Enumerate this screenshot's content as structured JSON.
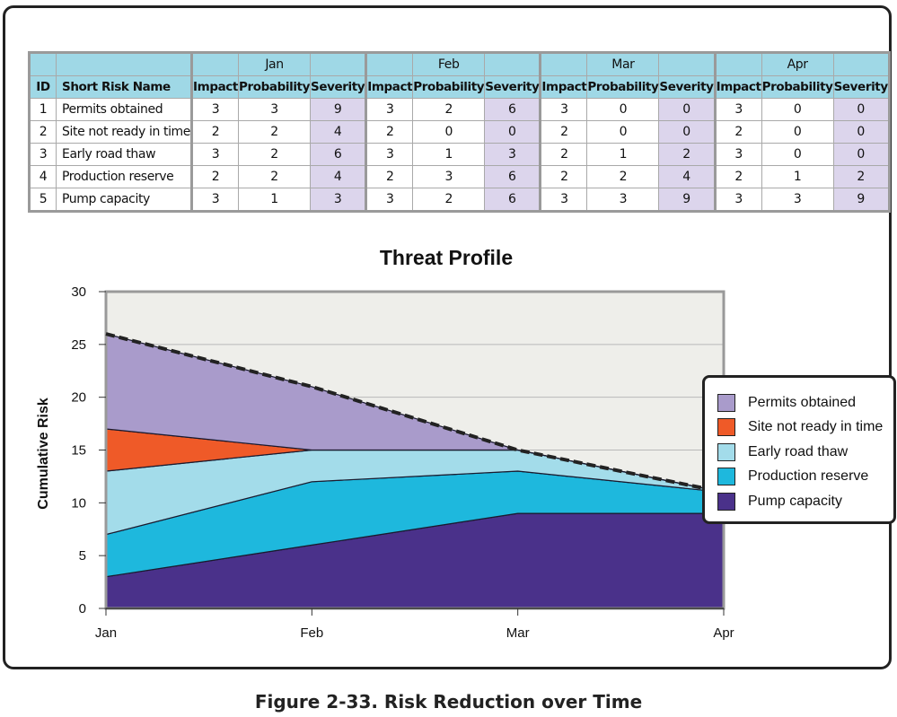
{
  "table": {
    "months": [
      "Jan",
      "Feb",
      "Mar",
      "Apr"
    ],
    "headers": {
      "id": "ID",
      "name": "Short Risk Name",
      "impact": "Impact",
      "probability": "Probability",
      "severity": "Severity"
    },
    "rows": [
      {
        "id": "1",
        "name": "Permits obtained",
        "cells": [
          "3",
          "3",
          "9",
          "3",
          "2",
          "6",
          "3",
          "0",
          "0",
          "3",
          "0",
          "0"
        ]
      },
      {
        "id": "2",
        "name": "Site not ready in time",
        "cells": [
          "2",
          "2",
          "4",
          "2",
          "0",
          "0",
          "2",
          "0",
          "0",
          "2",
          "0",
          "0"
        ]
      },
      {
        "id": "3",
        "name": "Early road thaw",
        "cells": [
          "3",
          "2",
          "6",
          "3",
          "1",
          "3",
          "2",
          "1",
          "2",
          "3",
          "0",
          "0"
        ]
      },
      {
        "id": "4",
        "name": "Production reserve",
        "cells": [
          "2",
          "2",
          "4",
          "2",
          "3",
          "6",
          "2",
          "2",
          "4",
          "2",
          "1",
          "2"
        ]
      },
      {
        "id": "5",
        "name": "Pump capacity",
        "cells": [
          "3",
          "1",
          "3",
          "3",
          "2",
          "6",
          "3",
          "3",
          "9",
          "3",
          "3",
          "9"
        ]
      }
    ],
    "colors": {
      "header_bg": "#9fd8e6",
      "severity_bg": "#dcd5ec"
    }
  },
  "chart_data": {
    "type": "area",
    "stacked": true,
    "title": "Threat Profile",
    "xlabel": "",
    "ylabel": "Cumulative Risk",
    "categories": [
      "Jan",
      "Feb",
      "Mar",
      "Apr"
    ],
    "ylim": [
      0,
      30
    ],
    "yticks": [
      0,
      5,
      10,
      15,
      20,
      25,
      30
    ],
    "grid": true,
    "legend_position": "right",
    "total_line": {
      "style": "dashed",
      "values": [
        26,
        21,
        15,
        11
      ]
    },
    "series": [
      {
        "name": "Pump capacity",
        "values": [
          3,
          6,
          9,
          9
        ],
        "color": "#4a318a"
      },
      {
        "name": "Production reserve",
        "values": [
          4,
          6,
          4,
          2
        ],
        "color": "#1eb8dd"
      },
      {
        "name": "Early road thaw",
        "values": [
          6,
          3,
          2,
          0
        ],
        "color": "#a3dcea"
      },
      {
        "name": "Site not ready in time",
        "values": [
          4,
          0,
          0,
          0
        ],
        "color": "#ef5a28"
      },
      {
        "name": "Permits obtained",
        "values": [
          9,
          6,
          0,
          0
        ],
        "color": "#a99bcb"
      }
    ],
    "plot_bg": "#eeeeea"
  },
  "legend": {
    "items": [
      {
        "label": "Permits obtained",
        "color": "#a99bcb"
      },
      {
        "label": "Site not ready in time",
        "color": "#ef5a28"
      },
      {
        "label": "Early road thaw",
        "color": "#a3dcea"
      },
      {
        "label": "Production reserve",
        "color": "#1eb8dd"
      },
      {
        "label": "Pump capacity",
        "color": "#4a318a"
      }
    ]
  },
  "caption": "Figure 2-33. Risk Reduction over Time"
}
